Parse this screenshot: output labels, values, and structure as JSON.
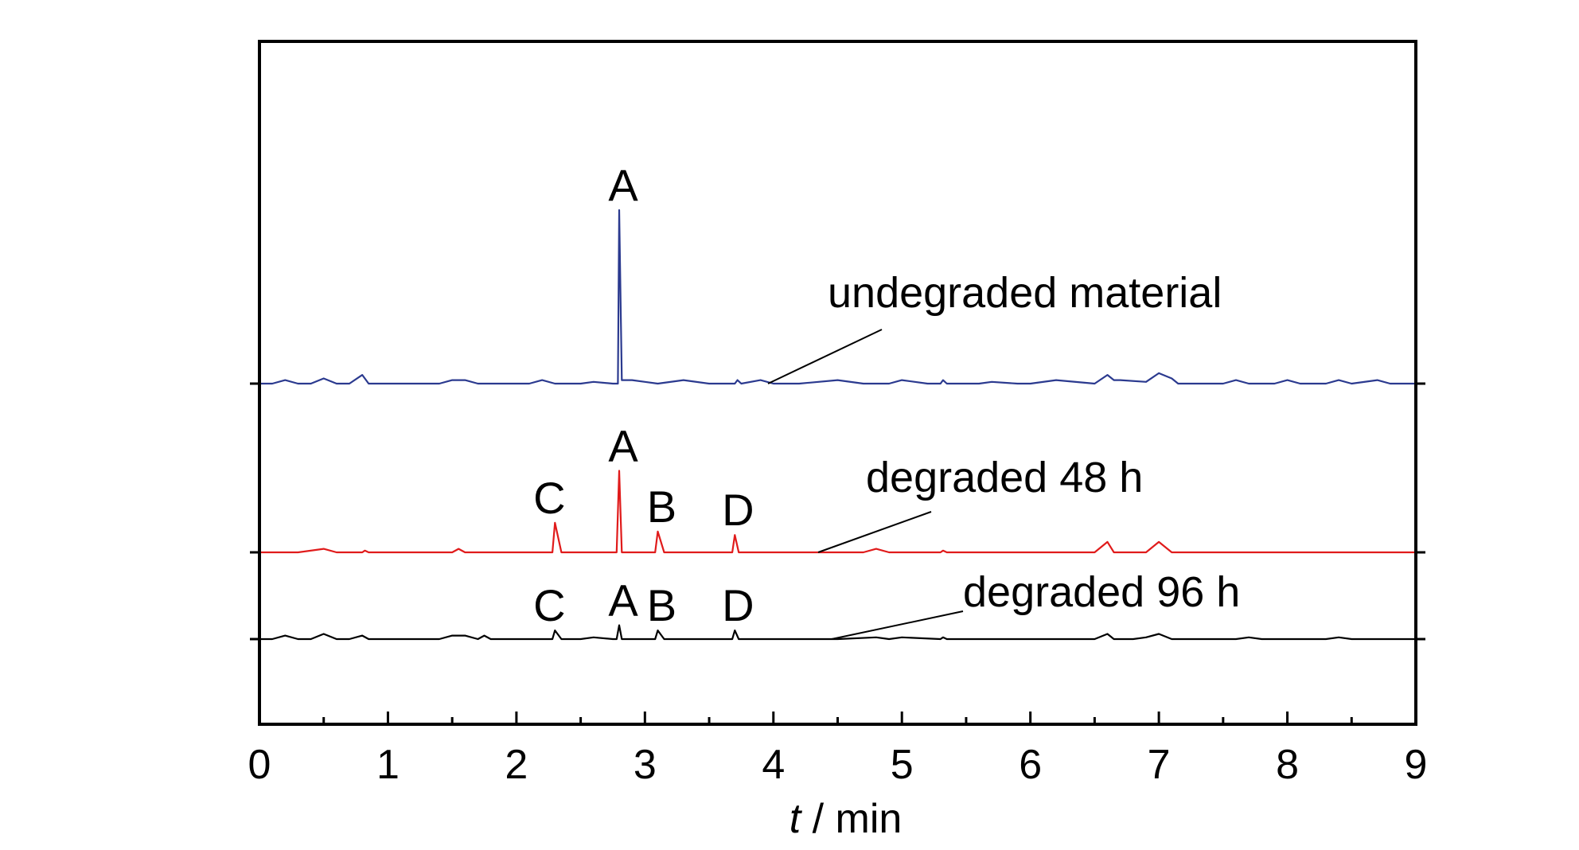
{
  "chart_data": {
    "type": "line",
    "xlabel_var": "t",
    "xlabel_unit": " / min",
    "xlim": [
      0,
      9
    ],
    "x_ticks": [
      "0",
      "1",
      "2",
      "3",
      "4",
      "5",
      "6",
      "7",
      "8",
      "9"
    ],
    "y_ticks_shown": false,
    "grid": false,
    "series": [
      {
        "name": "undegraded material",
        "color": "#2b3a8f",
        "points": [
          [
            0,
            0
          ],
          [
            0.1,
            0
          ],
          [
            0.2,
            0.02
          ],
          [
            0.3,
            0
          ],
          [
            0.4,
            0
          ],
          [
            0.5,
            0.03
          ],
          [
            0.6,
            0
          ],
          [
            0.7,
            0
          ],
          [
            0.8,
            0.05
          ],
          [
            0.85,
            0
          ],
          [
            1.0,
            0
          ],
          [
            1.4,
            0
          ],
          [
            1.5,
            0.02
          ],
          [
            1.6,
            0.02
          ],
          [
            1.7,
            0
          ],
          [
            2.1,
            0
          ],
          [
            2.2,
            0.02
          ],
          [
            2.3,
            0
          ],
          [
            2.5,
            0
          ],
          [
            2.6,
            0.01
          ],
          [
            2.75,
            0
          ],
          [
            2.79,
            0
          ],
          [
            2.8,
            1.0
          ],
          [
            2.82,
            0.02
          ],
          [
            2.9,
            0.02
          ],
          [
            3.0,
            0.01
          ],
          [
            3.1,
            0
          ],
          [
            3.3,
            0.02
          ],
          [
            3.5,
            0
          ],
          [
            3.7,
            0
          ],
          [
            3.72,
            0.02
          ],
          [
            3.75,
            0
          ],
          [
            3.9,
            0.02
          ],
          [
            4.0,
            0
          ],
          [
            4.2,
            0
          ],
          [
            4.5,
            0.02
          ],
          [
            4.7,
            0
          ],
          [
            4.9,
            0
          ],
          [
            5.0,
            0.02
          ],
          [
            5.2,
            0
          ],
          [
            5.3,
            0
          ],
          [
            5.32,
            0.02
          ],
          [
            5.35,
            0
          ],
          [
            5.6,
            0
          ],
          [
            5.7,
            0.01
          ],
          [
            5.9,
            0
          ],
          [
            6.0,
            0
          ],
          [
            6.2,
            0.02
          ],
          [
            6.5,
            0
          ],
          [
            6.6,
            0.05
          ],
          [
            6.65,
            0.02
          ],
          [
            6.7,
            0.02
          ],
          [
            6.9,
            0.01
          ],
          [
            7.0,
            0.06
          ],
          [
            7.1,
            0.03
          ],
          [
            7.15,
            0
          ],
          [
            7.5,
            0
          ],
          [
            7.6,
            0.02
          ],
          [
            7.7,
            0
          ],
          [
            7.9,
            0
          ],
          [
            8.0,
            0.02
          ],
          [
            8.1,
            0
          ],
          [
            8.3,
            0
          ],
          [
            8.4,
            0.02
          ],
          [
            8.5,
            0
          ],
          [
            8.7,
            0.02
          ],
          [
            8.8,
            0
          ],
          [
            9.0,
            0
          ]
        ]
      },
      {
        "name": "degraded 48 h",
        "color": "#e01b1b",
        "points": [
          [
            0,
            0
          ],
          [
            0.3,
            0
          ],
          [
            0.5,
            0.02
          ],
          [
            0.6,
            0
          ],
          [
            0.8,
            0
          ],
          [
            0.82,
            0.01
          ],
          [
            0.85,
            0
          ],
          [
            1.5,
            0
          ],
          [
            1.55,
            0.02
          ],
          [
            1.6,
            0
          ],
          [
            2.25,
            0
          ],
          [
            2.28,
            0
          ],
          [
            2.3,
            0.17
          ],
          [
            2.35,
            0
          ],
          [
            2.78,
            0
          ],
          [
            2.8,
            0.47
          ],
          [
            2.82,
            0
          ],
          [
            3.08,
            0
          ],
          [
            3.1,
            0.12
          ],
          [
            3.15,
            0
          ],
          [
            3.68,
            0
          ],
          [
            3.7,
            0.1
          ],
          [
            3.73,
            0
          ],
          [
            4.3,
            0
          ],
          [
            4.7,
            0
          ],
          [
            4.8,
            0.02
          ],
          [
            4.9,
            0
          ],
          [
            5.3,
            0
          ],
          [
            5.32,
            0.01
          ],
          [
            5.35,
            0
          ],
          [
            6.5,
            0
          ],
          [
            6.6,
            0.06
          ],
          [
            6.65,
            0
          ],
          [
            6.9,
            0
          ],
          [
            7.0,
            0.06
          ],
          [
            7.1,
            0
          ],
          [
            9.0,
            0
          ]
        ]
      },
      {
        "name": "degraded 96 h",
        "color": "#000000",
        "points": [
          [
            0,
            0
          ],
          [
            0.1,
            0
          ],
          [
            0.2,
            0.02
          ],
          [
            0.3,
            0
          ],
          [
            0.4,
            0
          ],
          [
            0.5,
            0.03
          ],
          [
            0.6,
            0
          ],
          [
            0.7,
            0
          ],
          [
            0.8,
            0.02
          ],
          [
            0.85,
            0
          ],
          [
            1.0,
            0
          ],
          [
            1.4,
            0
          ],
          [
            1.5,
            0.02
          ],
          [
            1.6,
            0.02
          ],
          [
            1.7,
            0
          ],
          [
            1.75,
            0.02
          ],
          [
            1.8,
            0
          ],
          [
            2.2,
            0
          ],
          [
            2.28,
            0
          ],
          [
            2.3,
            0.05
          ],
          [
            2.35,
            0
          ],
          [
            2.5,
            0
          ],
          [
            2.6,
            0.01
          ],
          [
            2.75,
            0
          ],
          [
            2.78,
            0
          ],
          [
            2.8,
            0.08
          ],
          [
            2.82,
            0
          ],
          [
            3.08,
            0
          ],
          [
            3.1,
            0.05
          ],
          [
            3.15,
            0
          ],
          [
            3.68,
            0
          ],
          [
            3.7,
            0.05
          ],
          [
            3.73,
            0
          ],
          [
            4.5,
            0
          ],
          [
            4.8,
            0.01
          ],
          [
            4.9,
            0
          ],
          [
            5.0,
            0.01
          ],
          [
            5.3,
            0
          ],
          [
            5.32,
            0.01
          ],
          [
            5.35,
            0
          ],
          [
            6.5,
            0
          ],
          [
            6.6,
            0.03
          ],
          [
            6.65,
            0
          ],
          [
            6.8,
            0
          ],
          [
            6.9,
            0.01
          ],
          [
            7.0,
            0.03
          ],
          [
            7.1,
            0
          ],
          [
            7.6,
            0
          ],
          [
            7.7,
            0.01
          ],
          [
            7.8,
            0
          ],
          [
            8.3,
            0
          ],
          [
            8.4,
            0.01
          ],
          [
            8.5,
            0
          ],
          [
            9.0,
            0
          ]
        ]
      }
    ],
    "peak_labels": [
      {
        "series": 0,
        "text": "A",
        "x": 2.8
      },
      {
        "series": 1,
        "text": "C",
        "x": 2.3
      },
      {
        "series": 1,
        "text": "A",
        "x": 2.8
      },
      {
        "series": 1,
        "text": "B",
        "x": 3.1
      },
      {
        "series": 1,
        "text": "D",
        "x": 3.7
      },
      {
        "series": 2,
        "text": "C",
        "x": 2.3
      },
      {
        "series": 2,
        "text": "A",
        "x": 2.8
      },
      {
        "series": 2,
        "text": "B",
        "x": 3.1
      },
      {
        "series": 2,
        "text": "D",
        "x": 3.7
      }
    ]
  }
}
